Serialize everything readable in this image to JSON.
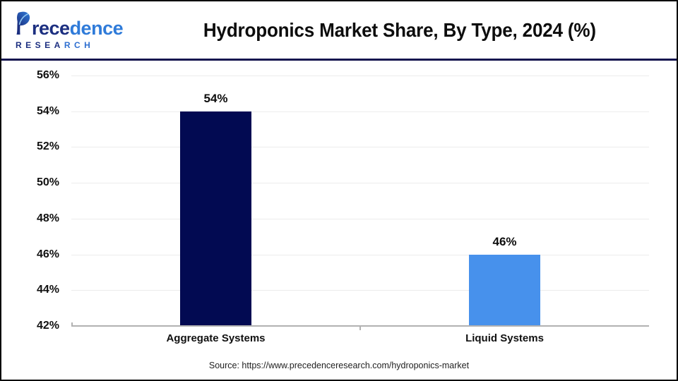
{
  "header": {
    "title": "Hydroponics Market Share, By Type, 2024 (%)",
    "logo": {
      "word": "Precedence",
      "word_dark": "rece",
      "word_blue": "dence",
      "sub_dark": "RESEA",
      "sub_blue": "RCH"
    }
  },
  "chart_data": {
    "type": "bar",
    "title": "Hydroponics Market Share, By Type, 2024 (%)",
    "categories": [
      "Aggregate Systems",
      "Liquid Systems"
    ],
    "values": [
      54,
      46
    ],
    "value_labels": [
      "54%",
      "46%"
    ],
    "bar_colors": [
      "#020a52",
      "#4791ec"
    ],
    "xlabel": "",
    "ylabel": "",
    "ylim": [
      42,
      56
    ],
    "ytick_step": 2,
    "ytick_labels": [
      "42%",
      "44%",
      "46%",
      "48%",
      "50%",
      "52%",
      "54%",
      "56%"
    ],
    "grid": true,
    "legend": false
  },
  "colors": {
    "divider_navy": "#14144e",
    "logo_dark": "#1c2f80",
    "logo_blue": "#2f7bd9",
    "gridline": "#ececec",
    "axis_line": "#b2b2b2"
  },
  "footer": {
    "source": "Source: https://www.precedenceresearch.com/hydroponics-market"
  }
}
